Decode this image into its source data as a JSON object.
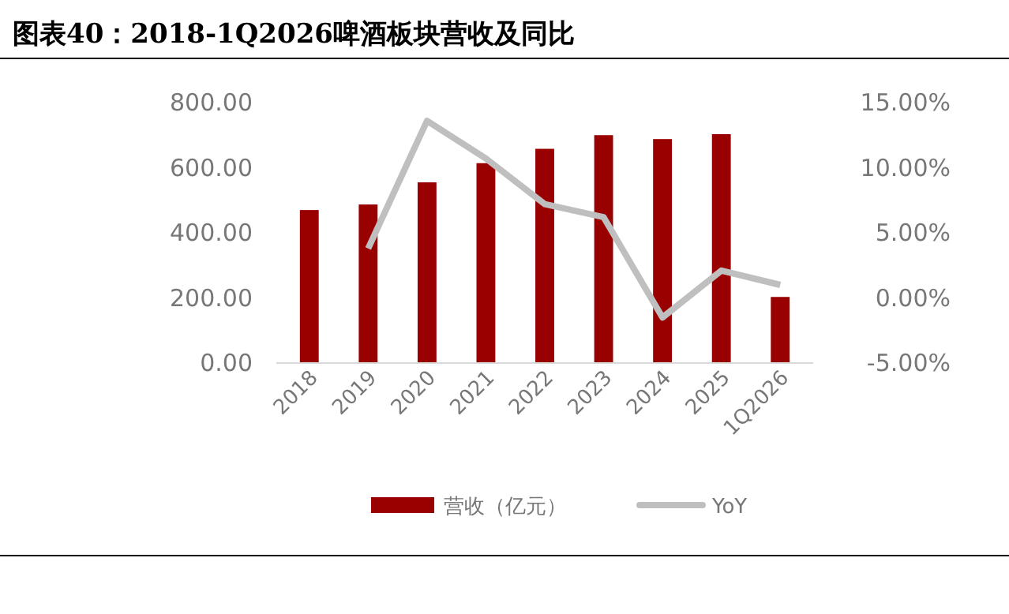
{
  "chart_data": {
    "type": "bar",
    "title": "图表40：2018-1Q2026啤酒板块营收及同比",
    "categories": [
      "2018",
      "2019",
      "2020",
      "2021",
      "2022",
      "2023",
      "2024",
      "2025",
      "1Q2026"
    ],
    "series": [
      {
        "name": "营收（亿元）",
        "color": "#990000",
        "values": [
          470,
          487,
          555,
          614,
          658,
          700,
          688,
          703,
          203
        ]
      },
      {
        "name": "YoY",
        "type": "line",
        "axis": "y2",
        "color": "#bfbfbf",
        "values": [
          null,
          3.8,
          13.6,
          10.7,
          7.2,
          6.2,
          -1.5,
          2.1,
          1.0
        ]
      }
    ],
    "ylim": [
      0,
      800
    ],
    "yticks": [
      {
        "value": 0,
        "label": "0.00"
      },
      {
        "value": 200,
        "label": "200.00"
      },
      {
        "value": 400,
        "label": "400.00"
      },
      {
        "value": 600,
        "label": "600.00"
      },
      {
        "value": 800,
        "label": "800.00"
      }
    ],
    "y2lim": [
      -5,
      15
    ],
    "y2ticks": [
      {
        "value": -5,
        "label": "-5.00%"
      },
      {
        "value": 0,
        "label": "0.00%"
      },
      {
        "value": 5,
        "label": "5.00%"
      },
      {
        "value": 10,
        "label": "10.00%"
      },
      {
        "value": 15,
        "label": "15.00%"
      }
    ],
    "legend": "bottom",
    "grid": false,
    "marker": "none"
  }
}
